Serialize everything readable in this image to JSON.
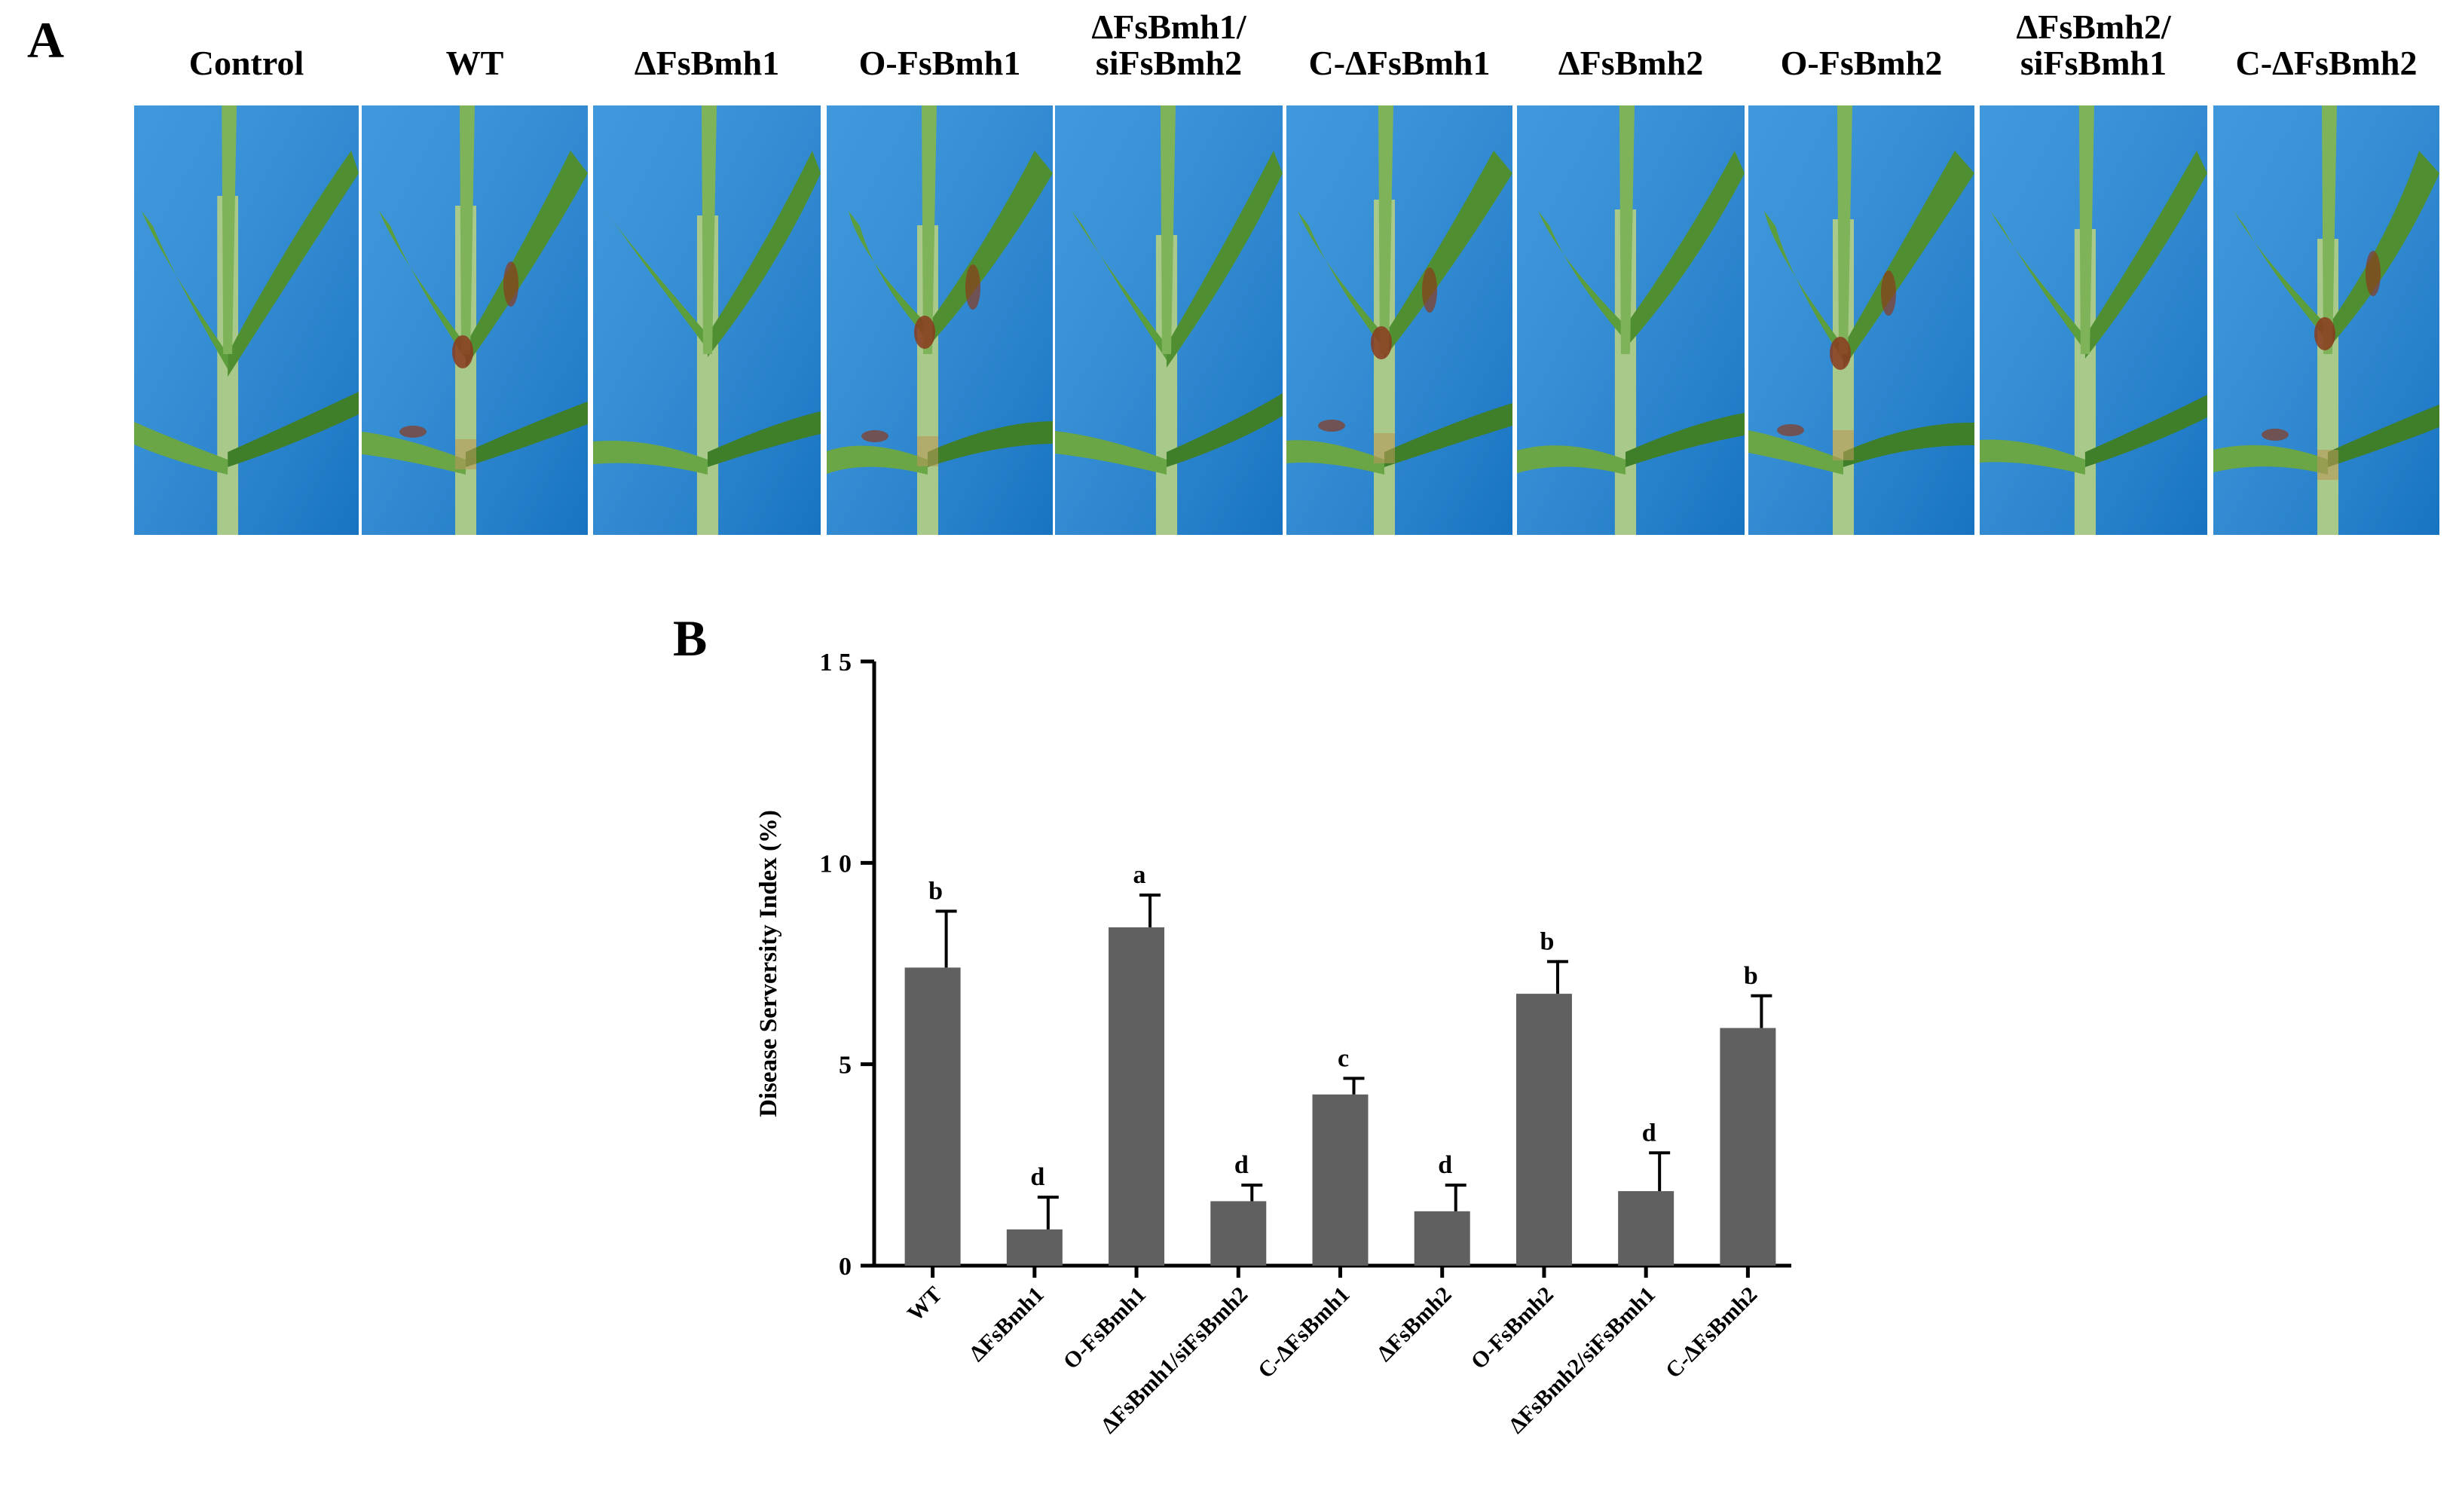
{
  "panel_a": {
    "letter": "A",
    "photos": [
      {
        "label": "Control",
        "scene": "healthy"
      },
      {
        "label": "WT",
        "scene": "diseased"
      },
      {
        "label": "ΔFsBmh1",
        "scene": "healthy"
      },
      {
        "label": "O-FsBmh1",
        "scene": "diseased"
      },
      {
        "label": "ΔFsBmh1/ siFsBmh2",
        "scene": "healthy"
      },
      {
        "label": "C-ΔFsBmh1",
        "scene": "diseased"
      },
      {
        "label": "ΔFsBmh2",
        "scene": "healthy"
      },
      {
        "label": "O-FsBmh2",
        "scene": "diseased"
      },
      {
        "label": "ΔFsBmh2/ siFsBmh1",
        "scene": "healthy"
      },
      {
        "label": "C-ΔFsBmh2",
        "scene": "diseased"
      }
    ],
    "colors": {
      "background": "#1f86d6",
      "leaf": "#5c9e3c",
      "stem": "#a9c98a",
      "lesion": "#8a3a1e"
    }
  },
  "chart_data": {
    "panel_letter": "B",
    "type": "bar",
    "categories": [
      "WT",
      "ΔFsBmh1",
      "O-FsBmh1",
      "ΔFsBmh1/siFsBmh2",
      "C-ΔFsBmh1",
      "ΔFsBmh2",
      "O-FsBmh2",
      "ΔFsBmh2/siFsBmh1",
      "C-ΔFsBmh2"
    ],
    "values": [
      7.4,
      0.9,
      8.4,
      1.6,
      4.25,
      1.35,
      6.75,
      1.85,
      5.9
    ],
    "errors": [
      1.4,
      0.8,
      0.8,
      0.4,
      0.4,
      0.65,
      0.8,
      0.95,
      0.8
    ],
    "significance": [
      "b",
      "d",
      "a",
      "d",
      "c",
      "d",
      "b",
      "d",
      "b"
    ],
    "ylabel": "Disease Serversity Index (%)",
    "xlabel": "",
    "ylim": [
      0,
      15
    ],
    "yticks": [
      0,
      5,
      10,
      15
    ],
    "ytick_labels": [
      "0",
      "5",
      "1 0",
      "1 5"
    ],
    "grid": false,
    "colors": {
      "bar": "#606060",
      "axis": "#000000"
    }
  }
}
